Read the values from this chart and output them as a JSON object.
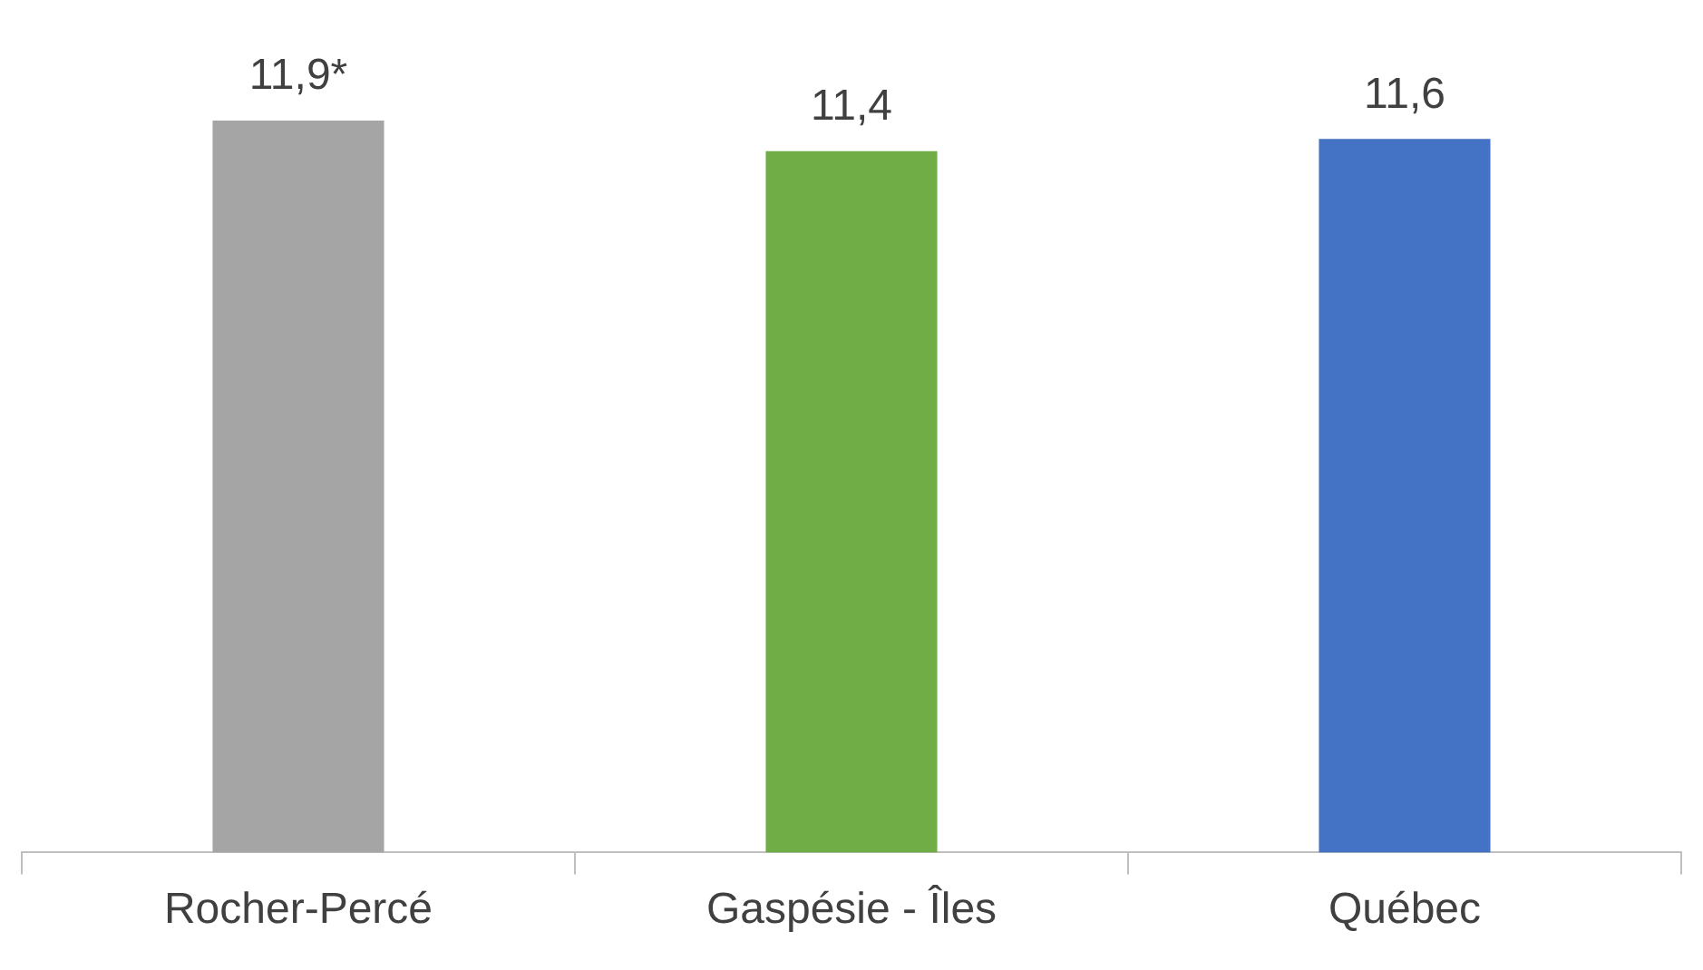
{
  "chart_data": {
    "type": "bar",
    "categories": [
      "Rocher-Percé",
      "Gaspésie - Îles",
      "Québec"
    ],
    "values": [
      11.9,
      11.4,
      11.6
    ],
    "colors": [
      "#a5a5a5",
      "#70ad47",
      "#4472c4"
    ],
    "value_labels": [
      "11,9*",
      "11,4",
      "11,6"
    ],
    "tick_labels": "x",
    "grid": false
  }
}
